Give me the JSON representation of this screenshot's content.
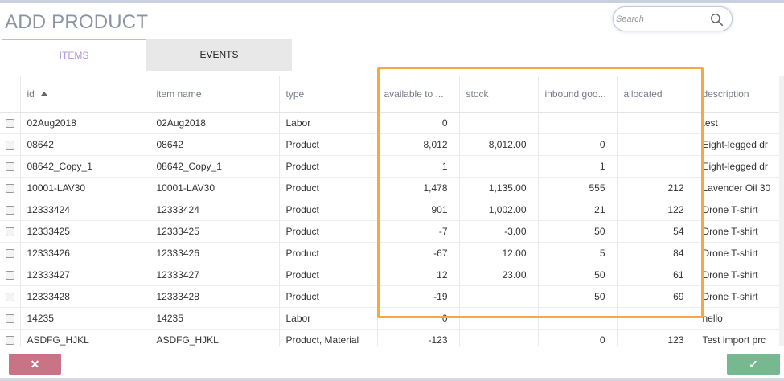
{
  "title": "ADD PRODUCT",
  "search": {
    "placeholder": "Search",
    "icon": "search-icon"
  },
  "tabs": [
    {
      "label": "ITEMS",
      "active": true
    },
    {
      "label": "EVENTS",
      "active": false
    }
  ],
  "columns": [
    "id",
    "item name",
    "type",
    "available to ...",
    "stock",
    "inbound goo...",
    "allocated",
    "description"
  ],
  "sort": {
    "column": "id",
    "direction": "asc"
  },
  "rows": [
    {
      "id": "02Aug2018",
      "name": "02Aug2018",
      "type": "Labor",
      "available": "0",
      "stock": "",
      "inbound": "",
      "allocated": "",
      "description": "test"
    },
    {
      "id": "08642",
      "name": "08642",
      "type": "Product",
      "available": "8,012",
      "stock": "8,012.00",
      "inbound": "0",
      "allocated": "",
      "description": "Eight-legged dr"
    },
    {
      "id": "08642_Copy_1",
      "name": "08642_Copy_1",
      "type": "Product",
      "available": "1",
      "stock": "",
      "inbound": "1",
      "allocated": "",
      "description": "Eight-legged dr"
    },
    {
      "id": "10001-LAV30",
      "name": "10001-LAV30",
      "type": "Product",
      "available": "1,478",
      "stock": "1,135.00",
      "inbound": "555",
      "allocated": "212",
      "description": "Lavender Oil 30"
    },
    {
      "id": "12333424",
      "name": "12333424",
      "type": "Product",
      "available": "901",
      "stock": "1,002.00",
      "inbound": "21",
      "allocated": "122",
      "description": "Drone T-shirt"
    },
    {
      "id": "12333425",
      "name": "12333425",
      "type": "Product",
      "available": "-7",
      "stock": "-3.00",
      "inbound": "50",
      "allocated": "54",
      "description": "Drone T-shirt"
    },
    {
      "id": "12333426",
      "name": "12333426",
      "type": "Product",
      "available": "-67",
      "stock": "12.00",
      "inbound": "5",
      "allocated": "84",
      "description": "Drone T-shirt"
    },
    {
      "id": "12333427",
      "name": "12333427",
      "type": "Product",
      "available": "12",
      "stock": "23.00",
      "inbound": "50",
      "allocated": "61",
      "description": "Drone T-shirt"
    },
    {
      "id": "12333428",
      "name": "12333428",
      "type": "Product",
      "available": "-19",
      "stock": "",
      "inbound": "50",
      "allocated": "69",
      "description": "Drone T-shirt"
    },
    {
      "id": "14235",
      "name": "14235",
      "type": "Labor",
      "available": "0",
      "stock": "",
      "inbound": "",
      "allocated": "",
      "description": "hello"
    },
    {
      "id": "ASDFG_HJKL",
      "name": "ASDFG_HJKL",
      "type": "Product, Material",
      "available": "-123",
      "stock": "",
      "inbound": "0",
      "allocated": "123",
      "description": "Test import prc"
    }
  ],
  "footer": {
    "cancel_label": "✕",
    "confirm_label": "✓"
  },
  "colors": {
    "highlight": "#f7a843",
    "cancel": "#c97386",
    "confirm": "#76b890",
    "active_tab": "#b190e8"
  }
}
